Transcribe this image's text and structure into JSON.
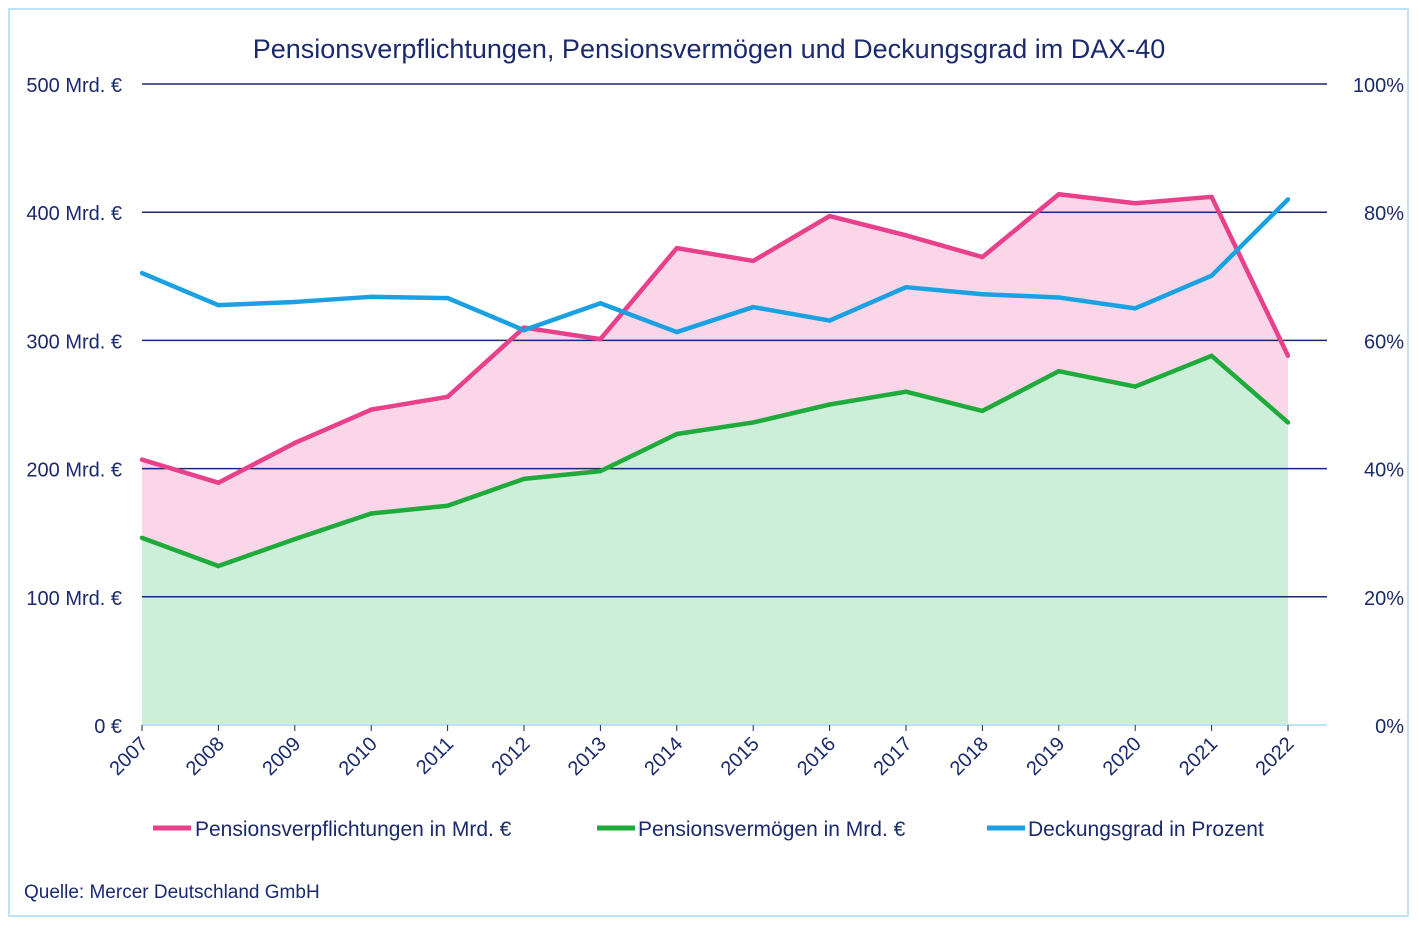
{
  "chart_data": {
    "type": "line",
    "title": "Pensionsverpflichtungen, Pensionsvermögen und Deckungsgrad im DAX-40",
    "categories": [
      "2007",
      "2008",
      "2009",
      "2010",
      "2011",
      "2012",
      "2013",
      "2014",
      "2015",
      "2016",
      "2017",
      "2018",
      "2019",
      "2020",
      "2021",
      "2022"
    ],
    "y_left": {
      "range": [
        0,
        500
      ],
      "ticks": [
        0,
        100,
        200,
        300,
        400,
        500
      ],
      "tick_labels": [
        "0 €",
        "100 Mrd. €",
        "200 Mrd. €",
        "300 Mrd. €",
        "400 Mrd. €",
        "500 Mrd. €"
      ]
    },
    "y_right": {
      "range": [
        0,
        100
      ],
      "ticks": [
        0,
        20,
        40,
        60,
        80,
        100
      ],
      "tick_labels": [
        "0%",
        "20%",
        "40%",
        "60%",
        "80%",
        "100%"
      ]
    },
    "grid": true,
    "legend_position": "bottom",
    "series": [
      {
        "name": "Pensionsverpflichtungen in Mrd. €",
        "axis": "left",
        "color": "#e8408a",
        "fill": "#fad6e8",
        "values": [
          207,
          189,
          220,
          246,
          256,
          310,
          301,
          372,
          362,
          397,
          382,
          365,
          414,
          407,
          412,
          288
        ]
      },
      {
        "name": "Pensionsvermögen in Mrd. €",
        "axis": "left",
        "color": "#1faa3c",
        "fill": "#cdeed8",
        "values": [
          146,
          124,
          145,
          165,
          171,
          192,
          198,
          227,
          236,
          250,
          260,
          245,
          276,
          264,
          288,
          236
        ]
      },
      {
        "name": "Deckungsgrad in Prozent",
        "axis": "right",
        "color": "#1ba1e2",
        "values": [
          70.5,
          65.5,
          66,
          66.8,
          66.6,
          61.6,
          65.8,
          61.3,
          65.2,
          63.1,
          68.3,
          67.2,
          66.7,
          65,
          70.1,
          82
        ]
      }
    ],
    "source": "Quelle: Mercer Deutschland GmbH"
  }
}
